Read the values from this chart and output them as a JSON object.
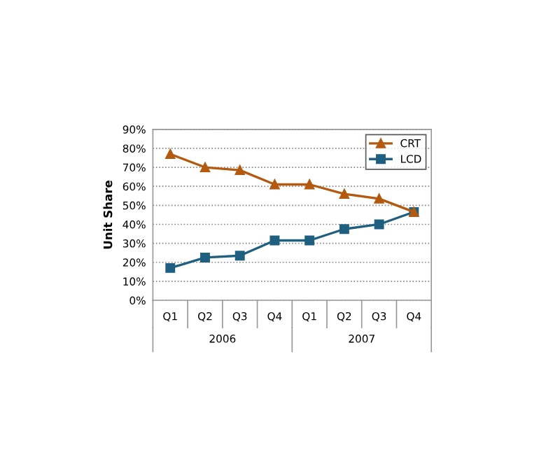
{
  "chart_data": {
    "type": "line",
    "ylabel": "Unit Share",
    "categories": [
      "Q1",
      "Q2",
      "Q3",
      "Q4",
      "Q1",
      "Q2",
      "Q3",
      "Q4"
    ],
    "annotations": [
      "2006",
      "2007"
    ],
    "series": [
      {
        "name": "CRT",
        "color": "#b35a10",
        "marker": "triangle",
        "values": [
          77,
          70,
          68.5,
          61,
          61,
          56,
          53.5,
          46.5
        ]
      },
      {
        "name": "LCD",
        "color": "#1f5f80",
        "marker": "square",
        "values": [
          17,
          22.5,
          23.5,
          31.5,
          31.5,
          37.5,
          40,
          46.5
        ]
      }
    ],
    "ylim": [
      0,
      90
    ],
    "yticks": [
      {
        "value": 0,
        "label": "0%"
      },
      {
        "value": 10,
        "label": "10%"
      },
      {
        "value": 20,
        "label": "20%"
      },
      {
        "value": 30,
        "label": "30%"
      },
      {
        "value": 40,
        "label": "40%"
      },
      {
        "value": 50,
        "label": "50%"
      },
      {
        "value": 60,
        "label": "60%"
      },
      {
        "value": 70,
        "label": "70%"
      },
      {
        "value": 80,
        "label": "80%"
      },
      {
        "value": 90,
        "label": "90%"
      }
    ],
    "grid": "y",
    "legend": "top right",
    "line_style": "solid"
  }
}
